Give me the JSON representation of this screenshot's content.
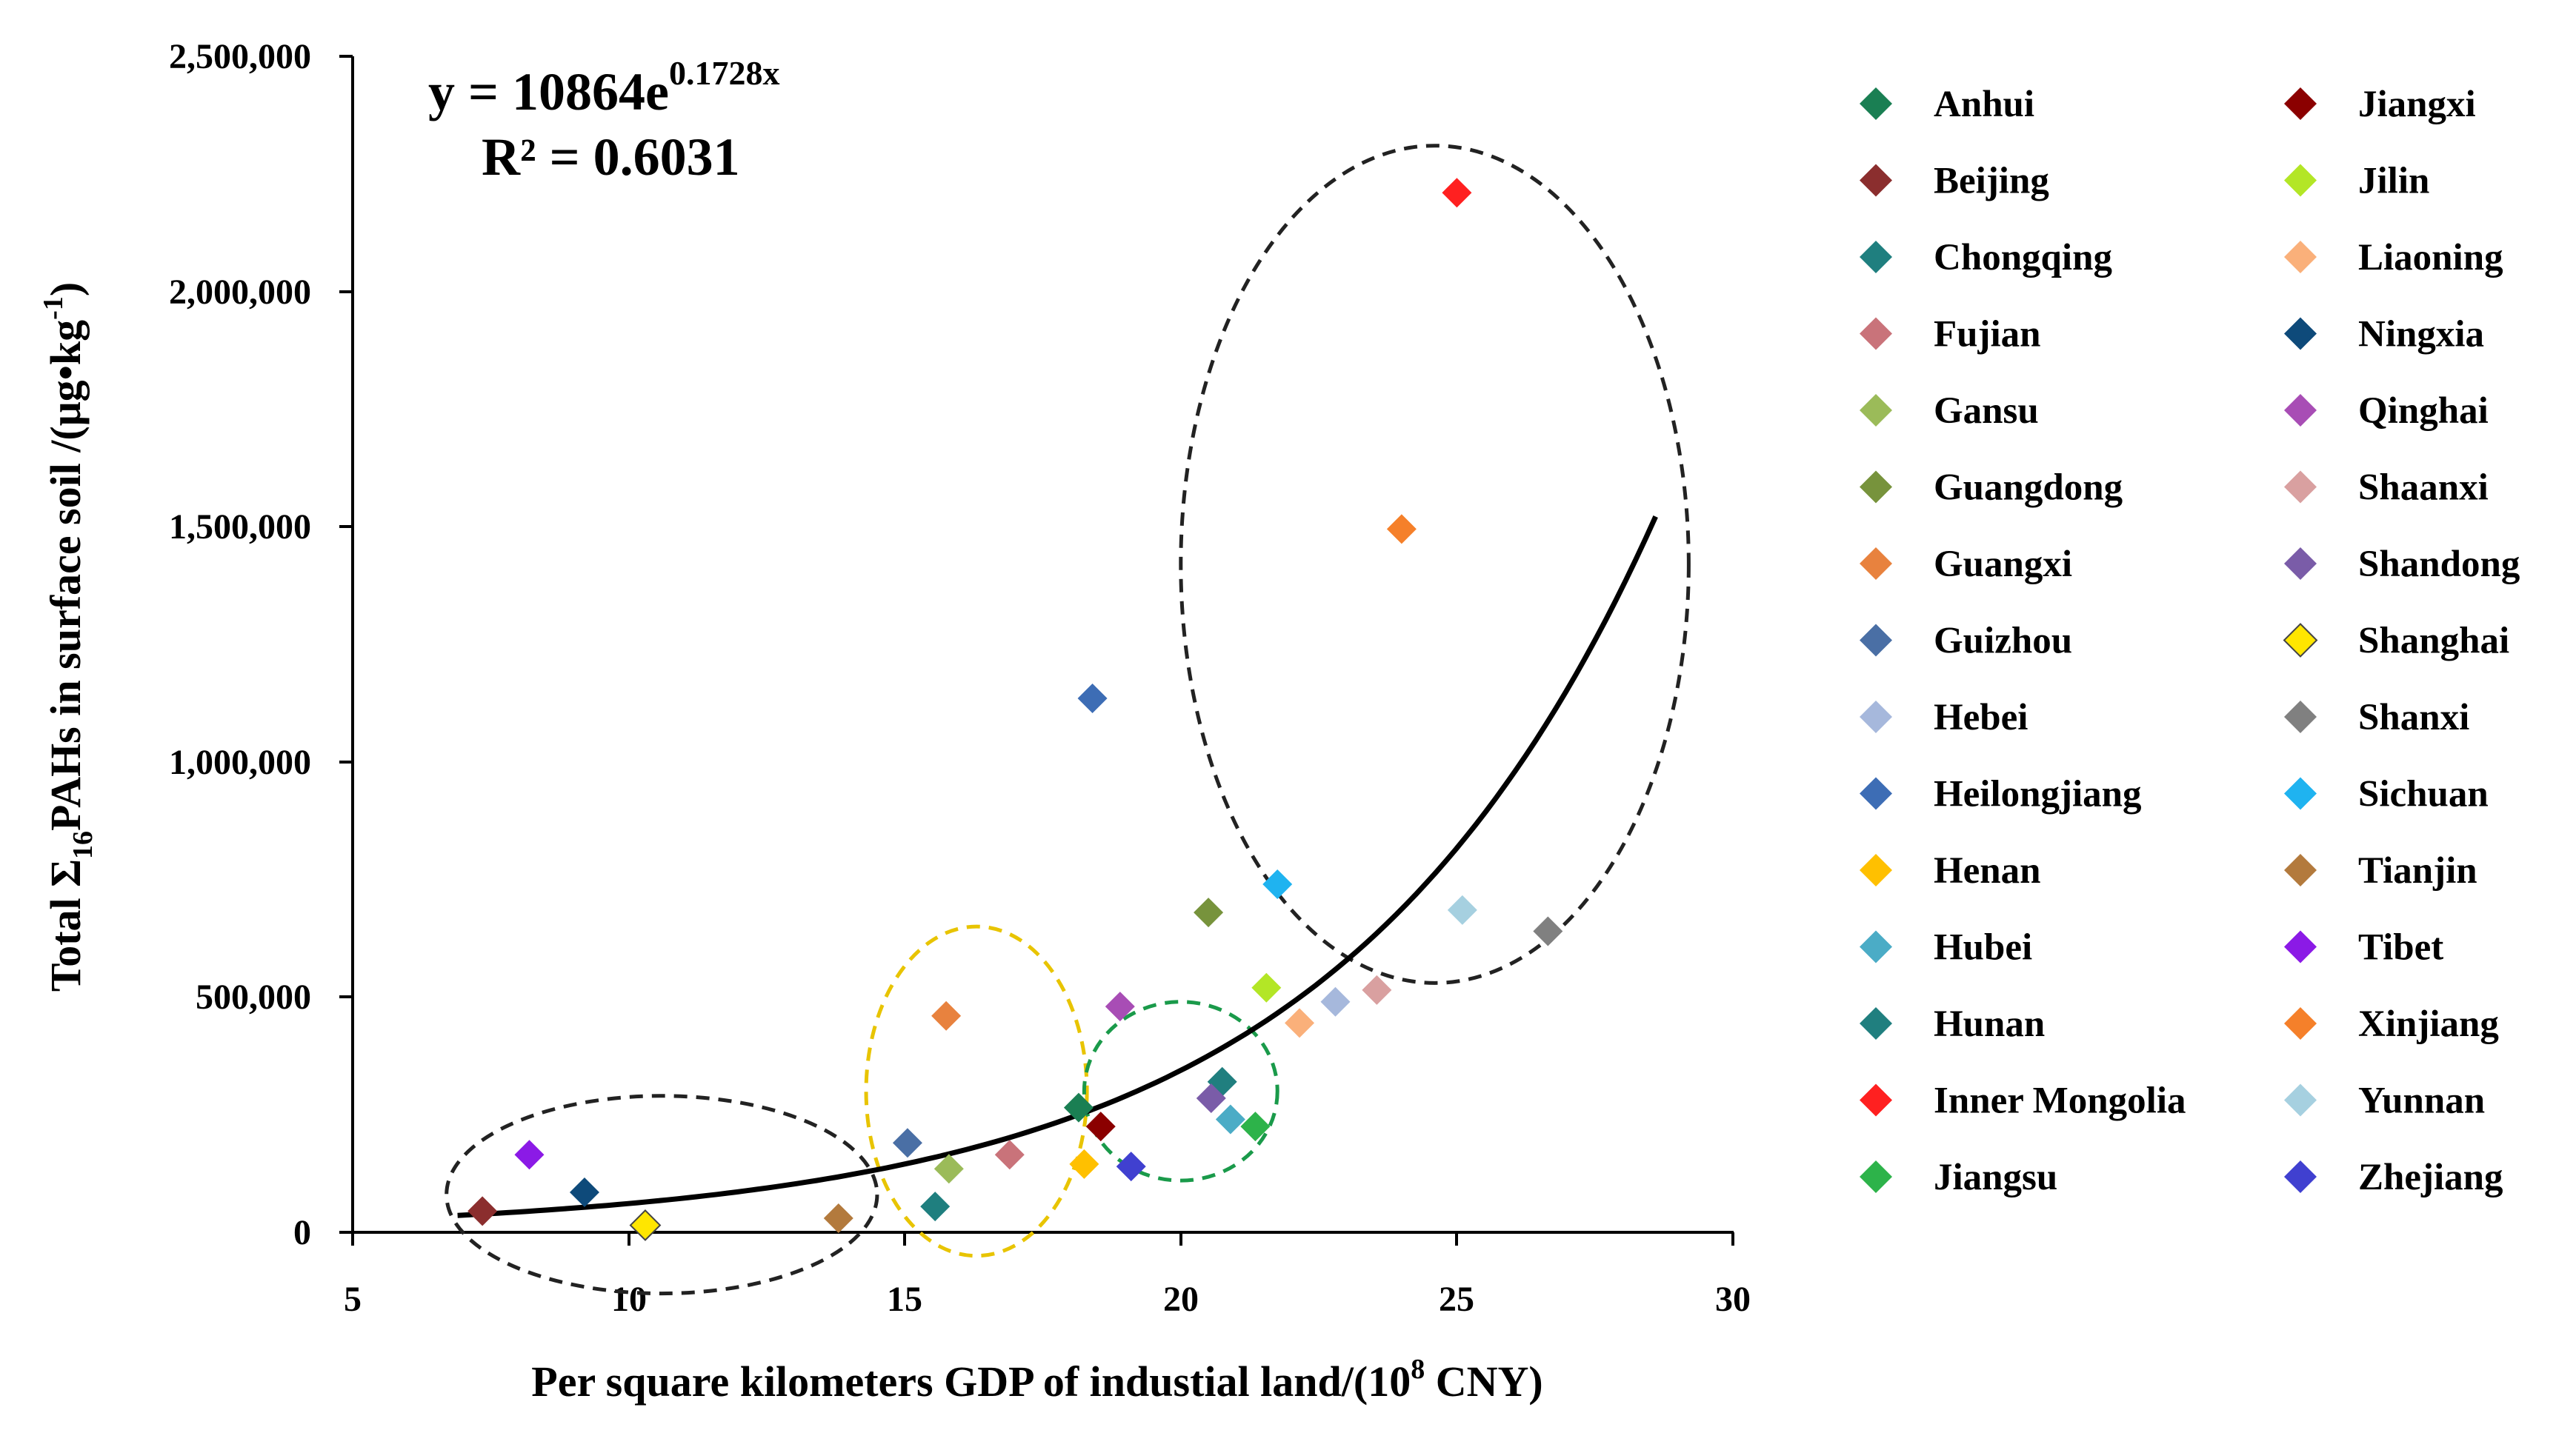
{
  "chart_data": {
    "type": "scatter",
    "title": "",
    "xlabel_main": "Per square kilometers GDP of industial land/(10",
    "xlabel_exp": "8",
    "xlabel_unit": " CNY)",
    "ylabel_main": "Total Σ",
    "ylabel_sub": "16",
    "ylabel_mid": "PAHs in surface soil /(μg•kg",
    "ylabel_sup": "-1",
    "ylabel_end": ")",
    "xlim": [
      5,
      30
    ],
    "ylim": [
      0,
      2500000
    ],
    "x_ticks": [
      5,
      10,
      15,
      20,
      25,
      30
    ],
    "x_tick_labels": [
      "5",
      "10",
      "15",
      "20",
      "25",
      "30"
    ],
    "y_ticks": [
      0,
      500000,
      1000000,
      1500000,
      2000000,
      2500000
    ],
    "y_tick_labels": [
      "0",
      "500,000",
      "1,000,000",
      "1,500,000",
      "2,000,000",
      "2,500,000"
    ],
    "legend_position": "right",
    "annotations": {
      "eq_main": "y = 10864e",
      "eq_exp": "0.1728x",
      "r2": "R² = 0.6031"
    },
    "trendline": {
      "a": 10864,
      "b": 0.1728,
      "x_from": 6.9,
      "x_to": 28.6
    },
    "clusters": [
      {
        "name": "low",
        "color": "#222222",
        "cx": 10.6,
        "cy": 80000,
        "rx": 3.9,
        "ry": 210000
      },
      {
        "name": "mid",
        "color": "#e8c400",
        "cx": 16.3,
        "cy": 300000,
        "rx": 2.0,
        "ry": 350000
      },
      {
        "name": "mid-high",
        "color": "#1a9a4a",
        "cx": 20.0,
        "cy": 300000,
        "rx": 1.75,
        "ry": 190000
      },
      {
        "name": "high",
        "color": "#222222",
        "cx": 24.6,
        "cy": 1420000,
        "rx": 4.6,
        "ry": 890000
      }
    ],
    "series": [
      {
        "name": "Anhui",
        "color": "#1a7f53",
        "x": 18.15,
        "y": 265000
      },
      {
        "name": "Beijing",
        "color": "#8b2e2e",
        "x": 7.35,
        "y": 45000
      },
      {
        "name": "Chongqing",
        "color": "#1f7f7f",
        "x": 15.55,
        "y": 55000
      },
      {
        "name": "Fujian",
        "color": "#c9737a",
        "x": 16.9,
        "y": 165000
      },
      {
        "name": "Gansu",
        "color": "#9bbb59",
        "x": 15.8,
        "y": 135000
      },
      {
        "name": "Guangdong",
        "color": "#77933c",
        "x": 20.5,
        "y": 680000
      },
      {
        "name": "Guangxi",
        "color": "#e8823e",
        "x": 15.75,
        "y": 460000
      },
      {
        "name": "Guizhou",
        "color": "#4a6fa5",
        "x": 15.05,
        "y": 190000
      },
      {
        "name": "Hebei",
        "color": "#a6b8dc",
        "x": 22.8,
        "y": 490000
      },
      {
        "name": "Heilongjiang",
        "color": "#3d6db5",
        "x": 18.4,
        "y": 1135000
      },
      {
        "name": "Henan",
        "color": "#ffc000",
        "x": 18.25,
        "y": 145000
      },
      {
        "name": "Hubei",
        "color": "#4bacc6",
        "x": 20.9,
        "y": 240000
      },
      {
        "name": "Hunan",
        "color": "#207f7f",
        "x": 20.75,
        "y": 320000
      },
      {
        "name": "Inner Mongolia",
        "color": "#ff2020",
        "x": 25.0,
        "y": 2210000
      },
      {
        "name": "Jiangsu",
        "color": "#2db34a",
        "x": 21.35,
        "y": 225000
      },
      {
        "name": "Jiangxi",
        "color": "#8b0000",
        "x": 18.55,
        "y": 225000
      },
      {
        "name": "Jilin",
        "color": "#b3e626",
        "x": 21.55,
        "y": 520000
      },
      {
        "name": "Liaoning",
        "color": "#fab07a",
        "x": 22.15,
        "y": 445000
      },
      {
        "name": "Ningxia",
        "color": "#0e4a7a",
        "x": 9.2,
        "y": 85000
      },
      {
        "name": "Qinghai",
        "color": "#a84db5",
        "x": 18.9,
        "y": 480000
      },
      {
        "name": "Shaanxi",
        "color": "#d9a0a0",
        "x": 23.55,
        "y": 515000
      },
      {
        "name": "Shandong",
        "color": "#7a5ca8",
        "x": 20.55,
        "y": 285000
      },
      {
        "name": "Shanghai",
        "color": "#ffe600",
        "x": 10.3,
        "y": 15000
      },
      {
        "name": "Shanxi",
        "color": "#808080",
        "x": 26.65,
        "y": 640000
      },
      {
        "name": "Sichuan",
        "color": "#1fb3f0",
        "x": 21.75,
        "y": 740000
      },
      {
        "name": "Tianjin",
        "color": "#b37a3d",
        "x": 13.8,
        "y": 30000
      },
      {
        "name": "Tibet",
        "color": "#8b1ae6",
        "x": 8.2,
        "y": 165000
      },
      {
        "name": "Xinjiang",
        "color": "#f5802a",
        "x": 24.0,
        "y": 1495000
      },
      {
        "name": "Yunnan",
        "color": "#a6d0e0",
        "x": 25.1,
        "y": 685000
      },
      {
        "name": "Zhejiang",
        "color": "#4040d0",
        "x": 19.1,
        "y": 140000
      }
    ]
  }
}
